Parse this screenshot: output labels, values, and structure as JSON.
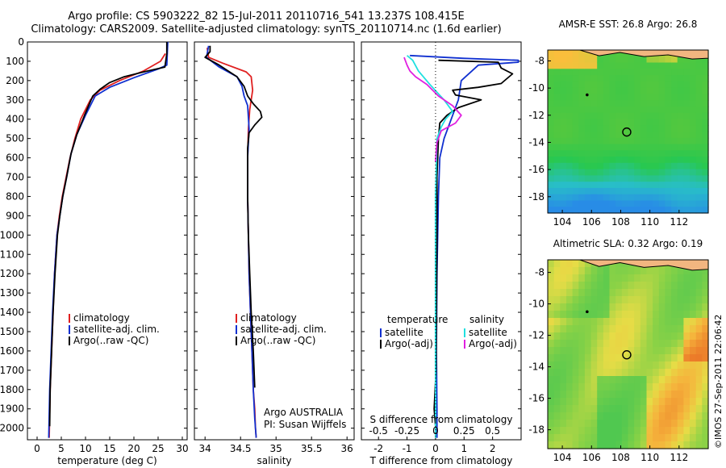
{
  "header": {
    "title_line1": "Argo profile: CS 5903222_82 15-Jul-2011 20110716_541 13.237S 108.415E",
    "title_line2": "Climatology: CARS2009. Satellite-adjusted climatology: synTS_20110714.nc (1.6d earlier)"
  },
  "stamp": "©IMOS 27-Sep-2011 22:06:42",
  "colors": {
    "climatology": "#e02020",
    "satellite": "#1030d0",
    "argo": "#000000",
    "sat_salinity": "#20e0e0",
    "argo_salinity": "#e020e0",
    "land": "#f2b680"
  },
  "chart_data": [
    {
      "id": "temperature",
      "type": "line",
      "xlabel": "temperature (deg C)",
      "ylabel": "",
      "xlim": [
        -2,
        31
      ],
      "ylim": [
        2060,
        0
      ],
      "y_reversed": true,
      "xticks": [
        0,
        5,
        10,
        15,
        20,
        25,
        30
      ],
      "yticks": [
        0,
        100,
        200,
        300,
        400,
        500,
        600,
        700,
        800,
        900,
        1000,
        1100,
        1200,
        1300,
        1400,
        1500,
        1600,
        1700,
        1800,
        1900,
        2000
      ],
      "legend": [
        "climatology",
        "satellite-adj. clim.",
        "Argo(..raw -QC)"
      ],
      "legend_position": "lower-center",
      "series": [
        {
          "name": "climatology",
          "color": "#e02020",
          "x": [
            26.5,
            25.5,
            22,
            17,
            13,
            11,
            9,
            7.8,
            6.8,
            6,
            5.2,
            4.6,
            4.1,
            3.6,
            3.3,
            3,
            2.7,
            2.5
          ],
          "y": [
            60,
            100,
            150,
            200,
            250,
            300,
            400,
            500,
            600,
            700,
            800,
            900,
            1000,
            1200,
            1400,
            1600,
            1800,
            2050
          ]
        },
        {
          "name": "satellite-adj. clim.",
          "color": "#1030d0",
          "x": [
            27,
            26.8,
            25,
            20,
            15,
            12,
            10,
            8.2,
            7,
            6.1,
            5.3,
            4.7,
            4.1,
            3.6,
            3.2,
            2.9,
            2.6,
            2.4
          ],
          "y": [
            0,
            120,
            140,
            185,
            235,
            280,
            380,
            480,
            580,
            700,
            800,
            900,
            1000,
            1200,
            1400,
            1600,
            1800,
            2050
          ]
        },
        {
          "name": "Argo(..raw -QC)",
          "color": "#000000",
          "x": [
            26.8,
            26.8,
            26.4,
            22,
            18,
            15,
            13,
            11.5,
            9.8,
            8.2,
            7,
            6.1,
            5.3,
            4.7,
            4.2,
            3.7,
            3.3,
            3,
            2.7,
            2.6
          ],
          "y": [
            0,
            60,
            130,
            155,
            180,
            210,
            245,
            280,
            380,
            480,
            580,
            700,
            800,
            900,
            1000,
            1200,
            1400,
            1600,
            1800,
            1990
          ]
        }
      ]
    },
    {
      "id": "salinity",
      "type": "line",
      "xlabel": "salinity",
      "xlim": [
        33.85,
        36.1
      ],
      "ylim": [
        2060,
        0
      ],
      "y_reversed": true,
      "xticks": [
        34,
        34.5,
        35,
        35.5,
        36
      ],
      "legend": [
        "climatology",
        "satellite-adj. clim.",
        "Argo(..raw -QC)"
      ],
      "legend_position": "lower-center",
      "annotations": [
        "Argo AUSTRALIA",
        "PI: Susan Wijffels"
      ],
      "series": [
        {
          "name": "climatology",
          "color": "#e02020",
          "x": [
            34.03,
            34.05,
            34.25,
            34.58,
            34.65,
            34.67,
            34.63,
            34.61,
            34.6,
            34.6,
            34.61,
            34.62,
            34.64,
            34.66,
            34.68,
            34.7,
            34.71,
            34.72
          ],
          "y": [
            30,
            80,
            110,
            155,
            180,
            250,
            350,
            450,
            600,
            800,
            1000,
            1200,
            1400,
            1600,
            1800,
            1900,
            2000,
            2050
          ]
        },
        {
          "name": "satellite-adj. clim.",
          "color": "#1030d0",
          "x": [
            34.05,
            34.02,
            34.2,
            34.45,
            34.52,
            34.55,
            34.6,
            34.62,
            34.6,
            34.6,
            34.61,
            34.62,
            34.64,
            34.66,
            34.68,
            34.7,
            34.72
          ],
          "y": [
            20,
            80,
            130,
            180,
            230,
            280,
            330,
            450,
            600,
            800,
            1000,
            1200,
            1400,
            1600,
            1800,
            1950,
            2050
          ]
        },
        {
          "name": "Argo(..raw -QC)",
          "color": "#000000",
          "x": [
            34.07,
            34.07,
            34.0,
            34.2,
            34.45,
            34.55,
            34.6,
            34.68,
            34.78,
            34.8,
            34.7,
            34.62,
            34.6,
            34.6,
            34.61,
            34.63,
            34.65,
            34.68,
            34.7
          ],
          "y": [
            20,
            50,
            80,
            120,
            180,
            230,
            280,
            320,
            360,
            390,
            430,
            470,
            550,
            800,
            1000,
            1200,
            1400,
            1600,
            1790
          ]
        }
      ]
    },
    {
      "id": "difference",
      "type": "line",
      "xlabel": "T difference from climatology",
      "secondary_xlabel": "S difference from climatology",
      "xlim": [
        -2.6,
        3.0
      ],
      "ylim": [
        2060,
        0
      ],
      "y_reversed": true,
      "xticks": [
        -2,
        -1,
        0,
        1,
        2
      ],
      "secondary_xticks": [
        "-0.5",
        "-0.25",
        "0",
        "0.25",
        "0.5"
      ],
      "legend_headers": [
        "temperature",
        "salinity"
      ],
      "legend": [
        "satellite",
        "Argo(-adj)",
        "satellite",
        "Argo(-adj)"
      ],
      "series": [
        {
          "name": "satellite",
          "group": "temperature",
          "color": "#1030d0",
          "x": [
            -0.9,
            1.0,
            2.9,
            2.9,
            1.5,
            0.9,
            0.8,
            0.6,
            0.3,
            0.15,
            0.1,
            0.05,
            0.03,
            0.05,
            0.05
          ],
          "y": [
            70,
            85,
            95,
            105,
            120,
            200,
            300,
            380,
            500,
            600,
            800,
            1200,
            1600,
            1900,
            2050
          ]
        },
        {
          "name": "Argo(-adj)",
          "group": "temperature",
          "color": "#000000",
          "x": [
            0.1,
            2.2,
            2.3,
            2.7,
            2.5,
            2.3,
            1.5,
            0.6,
            0.7,
            1.6,
            0.8,
            0.4,
            0.15,
            0.1,
            0.05,
            0.05,
            0.03,
            0.02,
            -0.05,
            0.0
          ],
          "y": [
            95,
            105,
            135,
            165,
            190,
            215,
            235,
            250,
            275,
            300,
            340,
            380,
            420,
            500,
            700,
            1000,
            1400,
            1700,
            1900,
            1990
          ]
        },
        {
          "name": "satellite",
          "group": "salinity",
          "color": "#20e0e0",
          "x": [
            -1.0,
            -0.8,
            -0.6,
            -0.2,
            0.3,
            0.6,
            0.35,
            0.2,
            0.05,
            0.0,
            0.0,
            0.0
          ],
          "y": [
            70,
            95,
            150,
            220,
            300,
            360,
            400,
            440,
            500,
            800,
            1200,
            2050
          ]
        },
        {
          "name": "Argo(-adj)",
          "group": "salinity",
          "color": "#e020e0",
          "x": [
            -1.1,
            -1.0,
            -0.9,
            -0.7,
            -0.3,
            0.1,
            0.6,
            0.9,
            0.7,
            0.2,
            0.05,
            0.0
          ],
          "y": [
            80,
            120,
            150,
            180,
            220,
            280,
            330,
            380,
            420,
            460,
            520,
            620
          ]
        }
      ]
    },
    {
      "id": "sst_map",
      "type": "heatmap",
      "title": "AMSR-E SST: 26.8 Argo: 26.8",
      "xlim": [
        103,
        114
      ],
      "ylim": [
        -19.2,
        -7.2
      ],
      "xticks": [
        104,
        106,
        108,
        110,
        112
      ],
      "yticks": [
        -8,
        -10,
        -12,
        -14,
        -16,
        -18
      ],
      "argo_position": [
        108.415,
        -13.237
      ],
      "dot_position": [
        105.7,
        -10.5
      ]
    },
    {
      "id": "sla_map",
      "type": "heatmap",
      "title": "Altimetric SLA: 0.32 Argo: 0.19",
      "xlim": [
        103,
        114
      ],
      "ylim": [
        -19.2,
        -7.2
      ],
      "xticks": [
        104,
        106,
        108,
        110,
        112
      ],
      "yticks": [
        -8,
        -10,
        -12,
        -14,
        -16,
        -18
      ],
      "argo_position": [
        108.415,
        -13.237
      ],
      "dot_position": [
        105.7,
        -10.5
      ]
    }
  ]
}
